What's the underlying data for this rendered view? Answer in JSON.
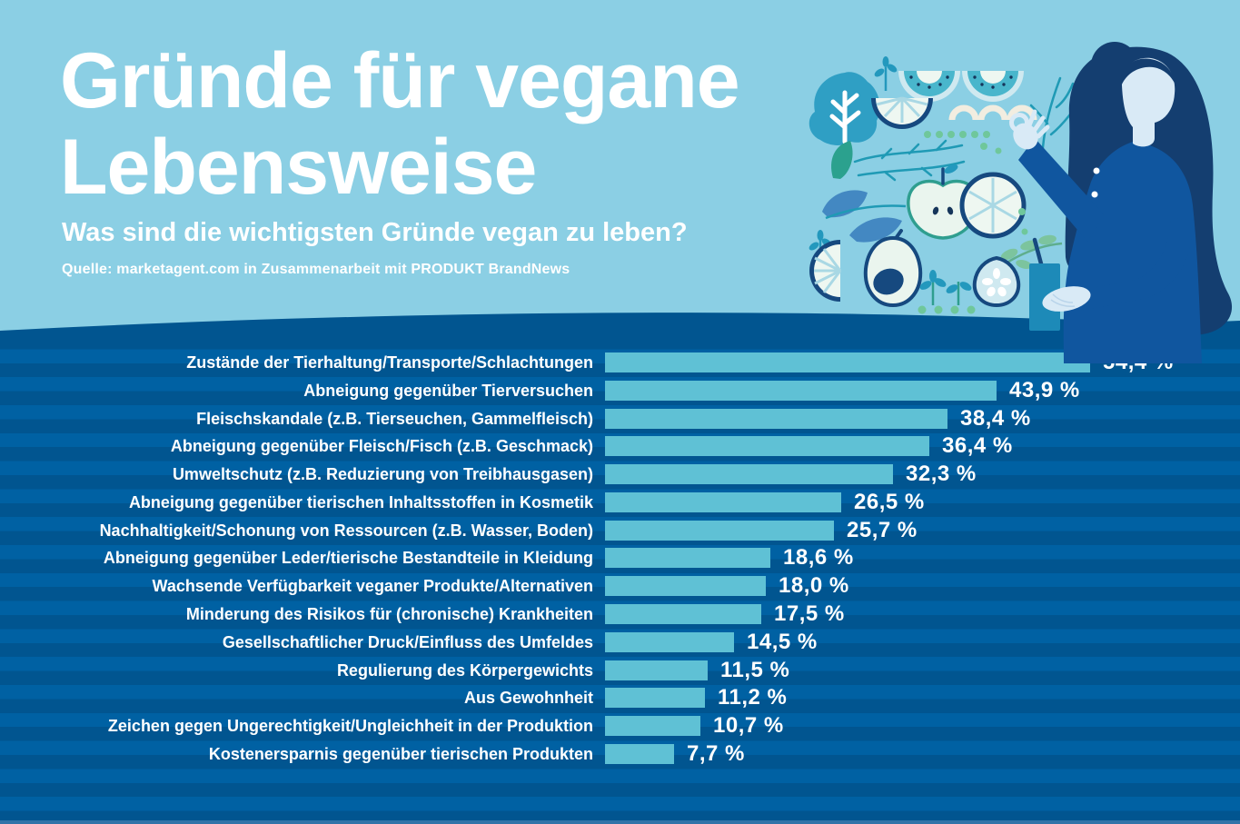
{
  "header": {
    "title_line1": "Gründe für vegane",
    "title_line2": "Lebensweise",
    "subtitle": "Was sind die wichtigsten Gründe vegan zu leben?",
    "source": "Quelle: marketagent.com in Zusammenarbeit mit PRODUKT BrandNews"
  },
  "colors": {
    "background_top": "#8bcfe4",
    "background_bottom_stripe_dark": "#015590",
    "background_bottom_stripe_light": "#0061a3",
    "bar": "#5fc1d5",
    "text": "#ffffff",
    "navy": "#16497f",
    "dress_blue": "#10569f",
    "teal": "#2398bd",
    "pale_fruit": "#eef7f1",
    "green": "#6fc79b"
  },
  "illustration": {
    "name": "woman-with-smoothie-and-fruits"
  },
  "chart_data": {
    "type": "bar",
    "orientation": "horizontal",
    "title": "Gründe für vegane Lebensweise",
    "xlabel": "",
    "ylabel": "",
    "unit": "%",
    "xlim": [
      0,
      60
    ],
    "grid": false,
    "legend": "none",
    "bar_color": "#5fc1d5",
    "categories": [
      "Zustände der Tierhaltung/Transporte/Schlachtungen",
      "Abneigung gegenüber Tierversuchen",
      "Fleischskandale (z.B. Tierseuchen, Gammelfleisch)",
      "Abneigung gegenüber Fleisch/Fisch (z.B. Geschmack)",
      "Umweltschutz (z.B. Reduzierung von Treibhausgasen)",
      "Abneigung gegenüber tierischen Inhaltsstoffen in Kosmetik",
      "Nachhaltigkeit/Schonung von Ressourcen (z.B. Wasser, Boden)",
      "Abneigung gegenüber Leder/tierische Bestandteile in Kleidung",
      "Wachsende Verfügbarkeit veganer Produkte/Alternativen",
      "Minderung des Risikos für (chronische) Krankheiten",
      "Gesellschaftlicher Druck/Einfluss des Umfeldes",
      "Regulierung des Körpergewichts",
      "Aus Gewohnheit",
      "Zeichen gegen Ungerechtigkeit/Ungleichheit in der Produktion",
      "Kostenersparnis gegenüber tierischen Produkten"
    ],
    "values": [
      54.4,
      43.9,
      38.4,
      36.4,
      32.3,
      26.5,
      25.7,
      18.6,
      18.0,
      17.5,
      14.5,
      11.5,
      11.2,
      10.7,
      7.7
    ],
    "value_labels": [
      "54,4 %",
      "43,9 %",
      "38,4 %",
      "36,4 %",
      "32,3 %",
      "26,5 %",
      "25,7 %",
      "18,6 %",
      "18,0 %",
      "17,5 %",
      "14,5 %",
      "11,5 %",
      "11,2 %",
      "10,7 %",
      "7,7 %"
    ]
  }
}
